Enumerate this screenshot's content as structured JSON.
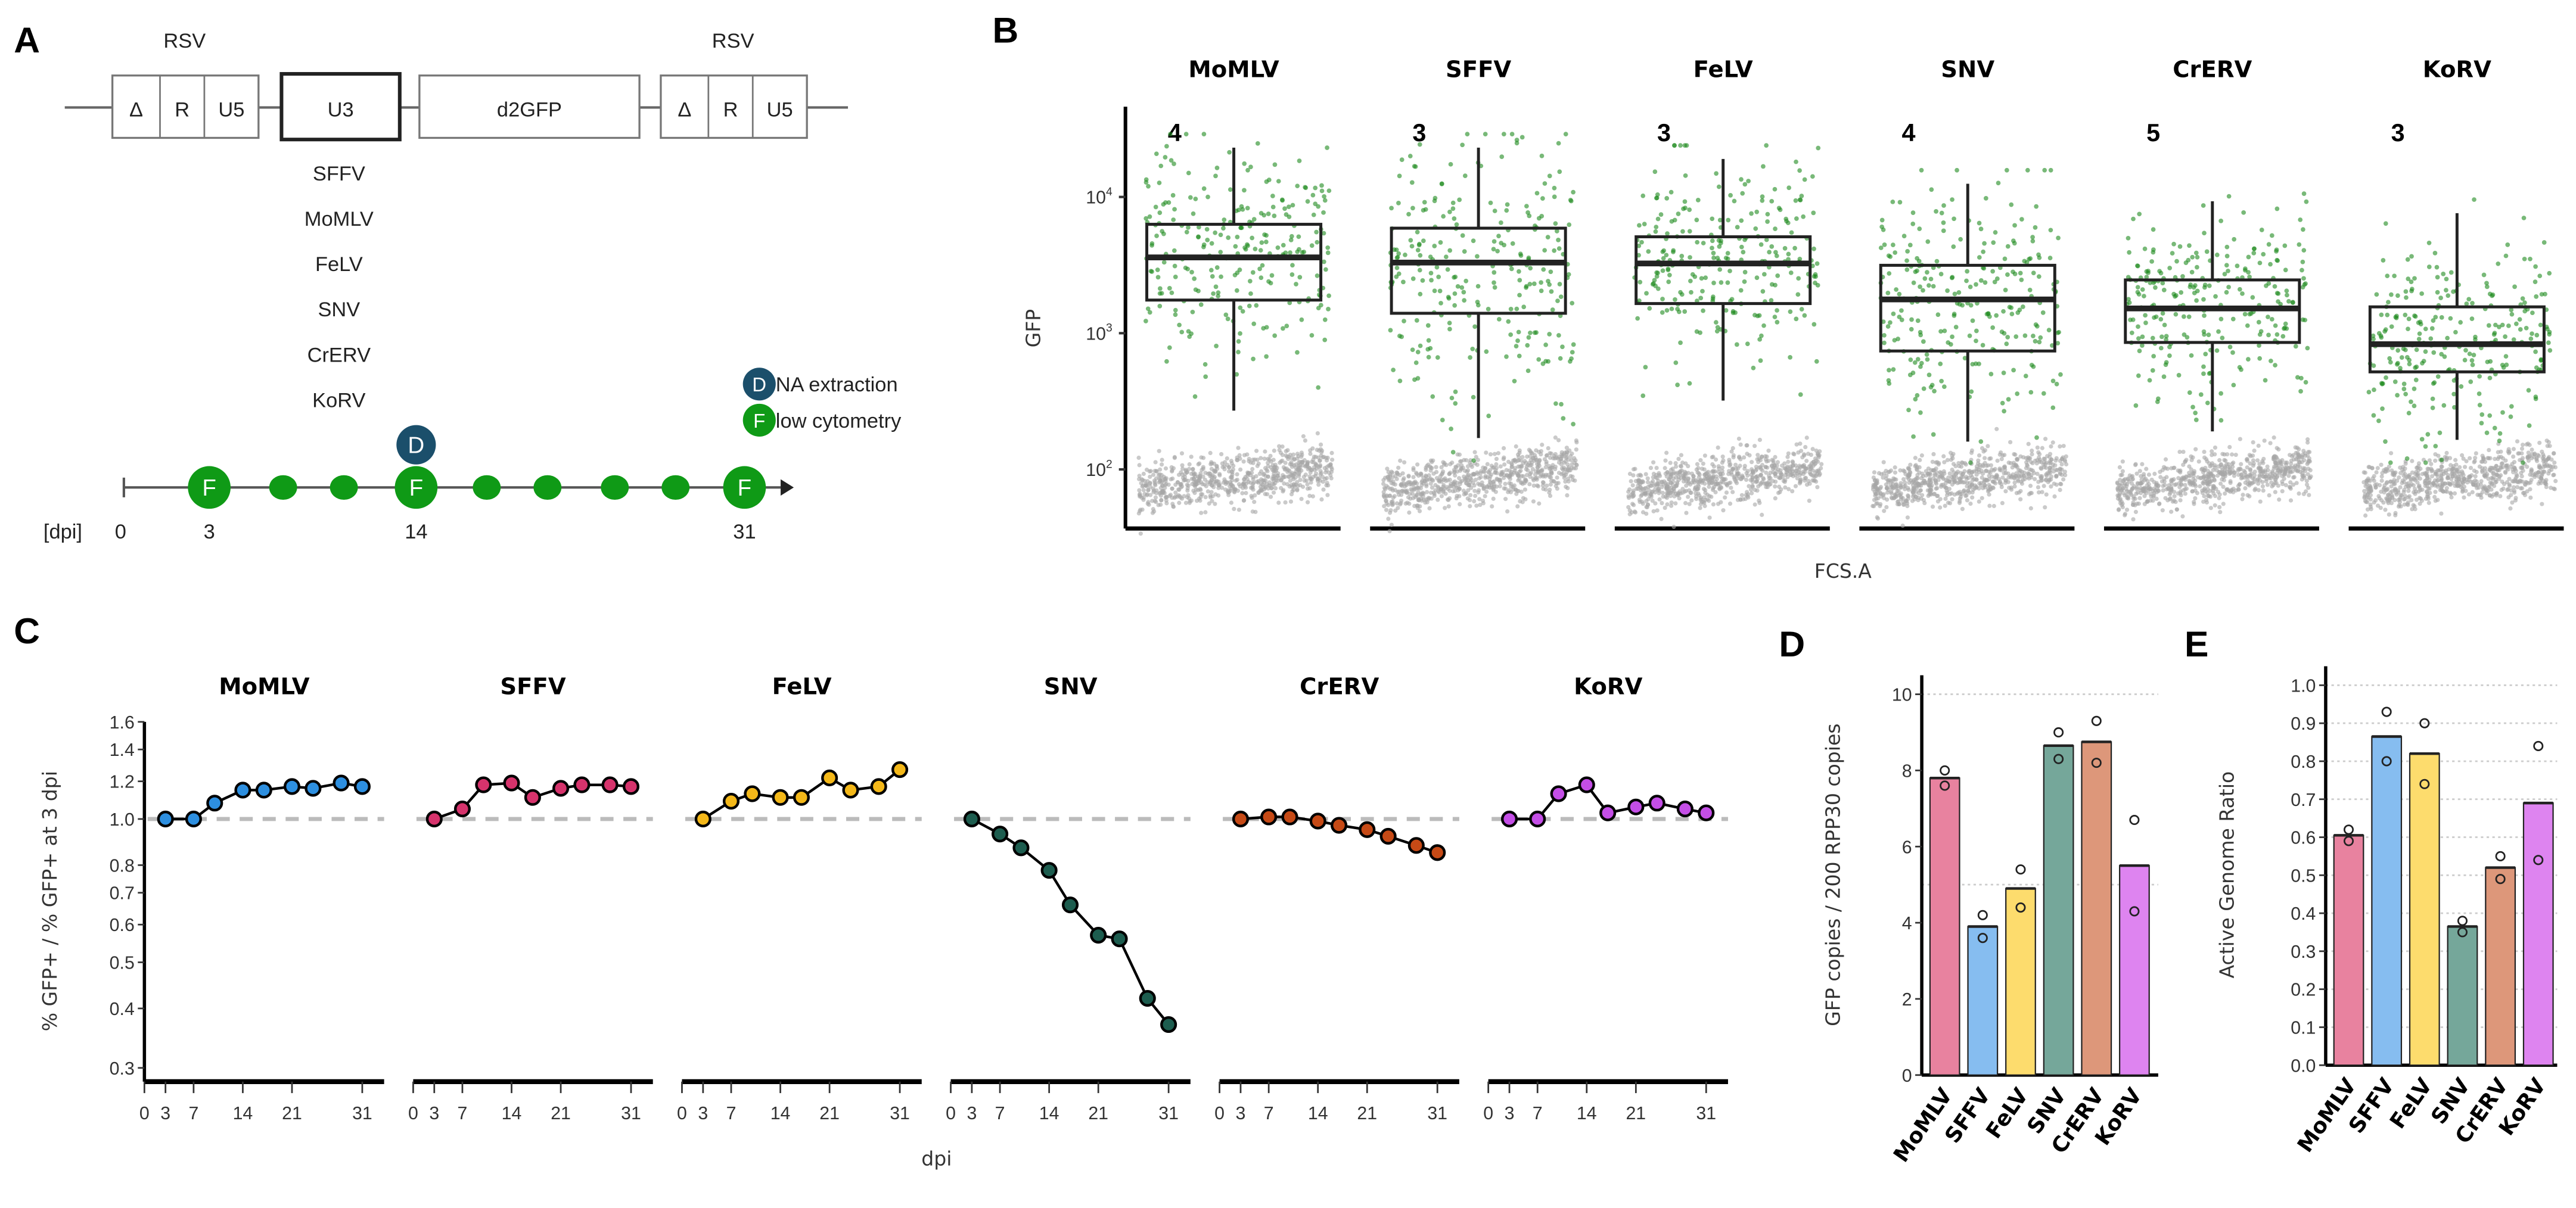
{
  "panel_labels": {
    "a": "A",
    "b": "B",
    "c": "C",
    "d": "D",
    "e": "E"
  },
  "construct": {
    "ltr_label": "RSV",
    "ltr_segments": [
      "Δ",
      "R",
      "U5"
    ],
    "u3_label": "U3",
    "reporter_label": "d2GFP",
    "promoters": [
      "SFFV",
      "MoMLV",
      "FeLV",
      "SNV",
      "CrERV",
      "KoRV"
    ]
  },
  "timeline": {
    "unit_label": "[dpi]",
    "tick_labels": [
      "0",
      "3",
      "14",
      "31"
    ],
    "flow_letter": "F",
    "dna_letter": "D",
    "legend": {
      "dna_rest": "NA extraction",
      "flow_rest": "low cytometry"
    },
    "colors": {
      "flow": "#0f9a16",
      "dna": "#1b4f6b"
    }
  },
  "viruses": [
    "MoMLV",
    "SFFV",
    "FeLV",
    "SNV",
    "CrERV",
    "KoRV"
  ],
  "chart_data": [
    {
      "panel": "B",
      "type": "box",
      "ylabel": "GFP",
      "xlabel": "FCS.A",
      "yscale": "log",
      "ylim": [
        35,
        40000
      ],
      "ytick_labels": [
        {
          "base": "10",
          "exp": "2",
          "value": 100
        },
        {
          "base": "10",
          "exp": "3",
          "value": 1000
        },
        {
          "base": "10",
          "exp": "4",
          "value": 10000
        }
      ],
      "point_colors": {
        "positive": "#1e8a1e",
        "negative": "#a6a6a6"
      },
      "facets": [
        {
          "name": "MoMLV",
          "count_label": "4",
          "whisker_low": 270,
          "q1": 1750,
          "median": 3600,
          "q3": 6300,
          "whisker_high": 23000
        },
        {
          "name": "SFFV",
          "count_label": "3",
          "whisker_low": 170,
          "q1": 1400,
          "median": 3300,
          "q3": 5900,
          "whisker_high": 23000
        },
        {
          "name": "FeLV",
          "count_label": "3",
          "whisker_low": 320,
          "q1": 1650,
          "median": 3250,
          "q3": 5100,
          "whisker_high": 19000
        },
        {
          "name": "SNV",
          "count_label": "4",
          "whisker_low": 160,
          "q1": 740,
          "median": 1770,
          "q3": 3150,
          "whisker_high": 12500
        },
        {
          "name": "CrERV",
          "count_label": "5",
          "whisker_low": 190,
          "q1": 855,
          "median": 1520,
          "q3": 2460,
          "whisker_high": 9300
        },
        {
          "name": "KoRV",
          "count_label": "3",
          "whisker_low": 165,
          "q1": 520,
          "median": 830,
          "q3": 1560,
          "whisker_high": 7600
        }
      ]
    },
    {
      "panel": "C",
      "type": "line",
      "ylabel": "% GFP+ / % GFP+ at 3 dpi",
      "xlabel": "dpi",
      "yscale": "log",
      "ylim": [
        0.28,
        1.65
      ],
      "xlim": [
        0,
        33
      ],
      "xticks": [
        0,
        3,
        7,
        14,
        21,
        31
      ],
      "yticks": [
        0.3,
        0.4,
        0.5,
        0.6,
        0.7,
        0.8,
        1.0,
        1.2,
        1.4,
        1.6
      ],
      "ytick_labels": [
        "0.3",
        "0.4",
        "0.5",
        "0.6",
        "0.7",
        "0.8",
        "1.0",
        "1.2",
        "1.4",
        "1.6"
      ],
      "reference_line": 1.0,
      "x": [
        3,
        7,
        10,
        14,
        17,
        21,
        24,
        28,
        31
      ],
      "series": [
        {
          "name": "MoMLV",
          "color": "#2d8fe0",
          "mean": [
            1.0,
            1.0,
            1.08,
            1.15,
            1.15,
            1.17,
            1.16,
            1.19,
            1.17
          ]
        },
        {
          "name": "SFFV",
          "color": "#d6336c",
          "mean": [
            1.0,
            1.05,
            1.18,
            1.19,
            1.11,
            1.16,
            1.18,
            1.18,
            1.17
          ]
        },
        {
          "name": "FeLV",
          "color": "#f4b819",
          "mean": [
            1.0,
            1.09,
            1.13,
            1.11,
            1.11,
            1.22,
            1.15,
            1.17,
            1.27
          ]
        },
        {
          "name": "SNV",
          "color": "#1d5d4f",
          "mean": [
            1.0,
            0.93,
            0.87,
            0.78,
            0.66,
            0.57,
            0.56,
            0.42,
            0.37
          ]
        },
        {
          "name": "CrERV",
          "color": "#c64a16",
          "mean": [
            1.0,
            1.01,
            1.01,
            0.99,
            0.97,
            0.95,
            0.92,
            0.88,
            0.85
          ]
        },
        {
          "name": "KoRV",
          "color": "#c44ee6",
          "mean": [
            1.0,
            1.0,
            1.13,
            1.18,
            1.03,
            1.06,
            1.08,
            1.05,
            1.03
          ]
        }
      ]
    },
    {
      "panel": "D",
      "type": "bar",
      "ylabel": "GFP copies / 200 RPP30 copies",
      "ylim": [
        0,
        10.5
      ],
      "yticks": [
        0,
        2,
        4,
        6,
        8,
        10
      ],
      "ytick_labels": [
        "0",
        "2",
        "4",
        "6",
        "8",
        "10"
      ],
      "categories": [
        "MoMLV",
        "SFFV",
        "FeLV",
        "SNV",
        "CrERV",
        "KoRV"
      ],
      "values": [
        7.8,
        3.9,
        4.9,
        8.65,
        8.75,
        5.5
      ],
      "replicates": [
        [
          8.0,
          7.6
        ],
        [
          4.2,
          3.6
        ],
        [
          5.4,
          4.4
        ],
        [
          9.0,
          8.3
        ],
        [
          9.3,
          8.2
        ],
        [
          6.7,
          4.3
        ]
      ],
      "colors": [
        "#e8829f",
        "#86bdf0",
        "#fddc6d",
        "#75a79a",
        "#dd977a",
        "#de84f0"
      ]
    },
    {
      "panel": "E",
      "type": "bar",
      "ylabel": "Active Genome Ratio",
      "ylim": [
        0,
        1.05
      ],
      "yticks": [
        0,
        0.1,
        0.2,
        0.3,
        0.4,
        0.5,
        0.6,
        0.7,
        0.8,
        0.9,
        1.0
      ],
      "ytick_labels": [
        "0.0",
        "0.1",
        "0.2",
        "0.3",
        "0.4",
        "0.5",
        "0.6",
        "0.7",
        "0.8",
        "0.9",
        "1.0"
      ],
      "categories": [
        "MoMLV",
        "SFFV",
        "FeLV",
        "SNV",
        "CrERV",
        "KoRV"
      ],
      "values": [
        0.605,
        0.865,
        0.82,
        0.365,
        0.52,
        0.69
      ],
      "replicates": [
        [
          0.62,
          0.59
        ],
        [
          0.93,
          0.8
        ],
        [
          0.9,
          0.74
        ],
        [
          0.38,
          0.35
        ],
        [
          0.55,
          0.49
        ],
        [
          0.84,
          0.54
        ]
      ],
      "colors": [
        "#e8829f",
        "#86bdf0",
        "#fddc6d",
        "#75a79a",
        "#dd977a",
        "#de84f0"
      ]
    }
  ]
}
